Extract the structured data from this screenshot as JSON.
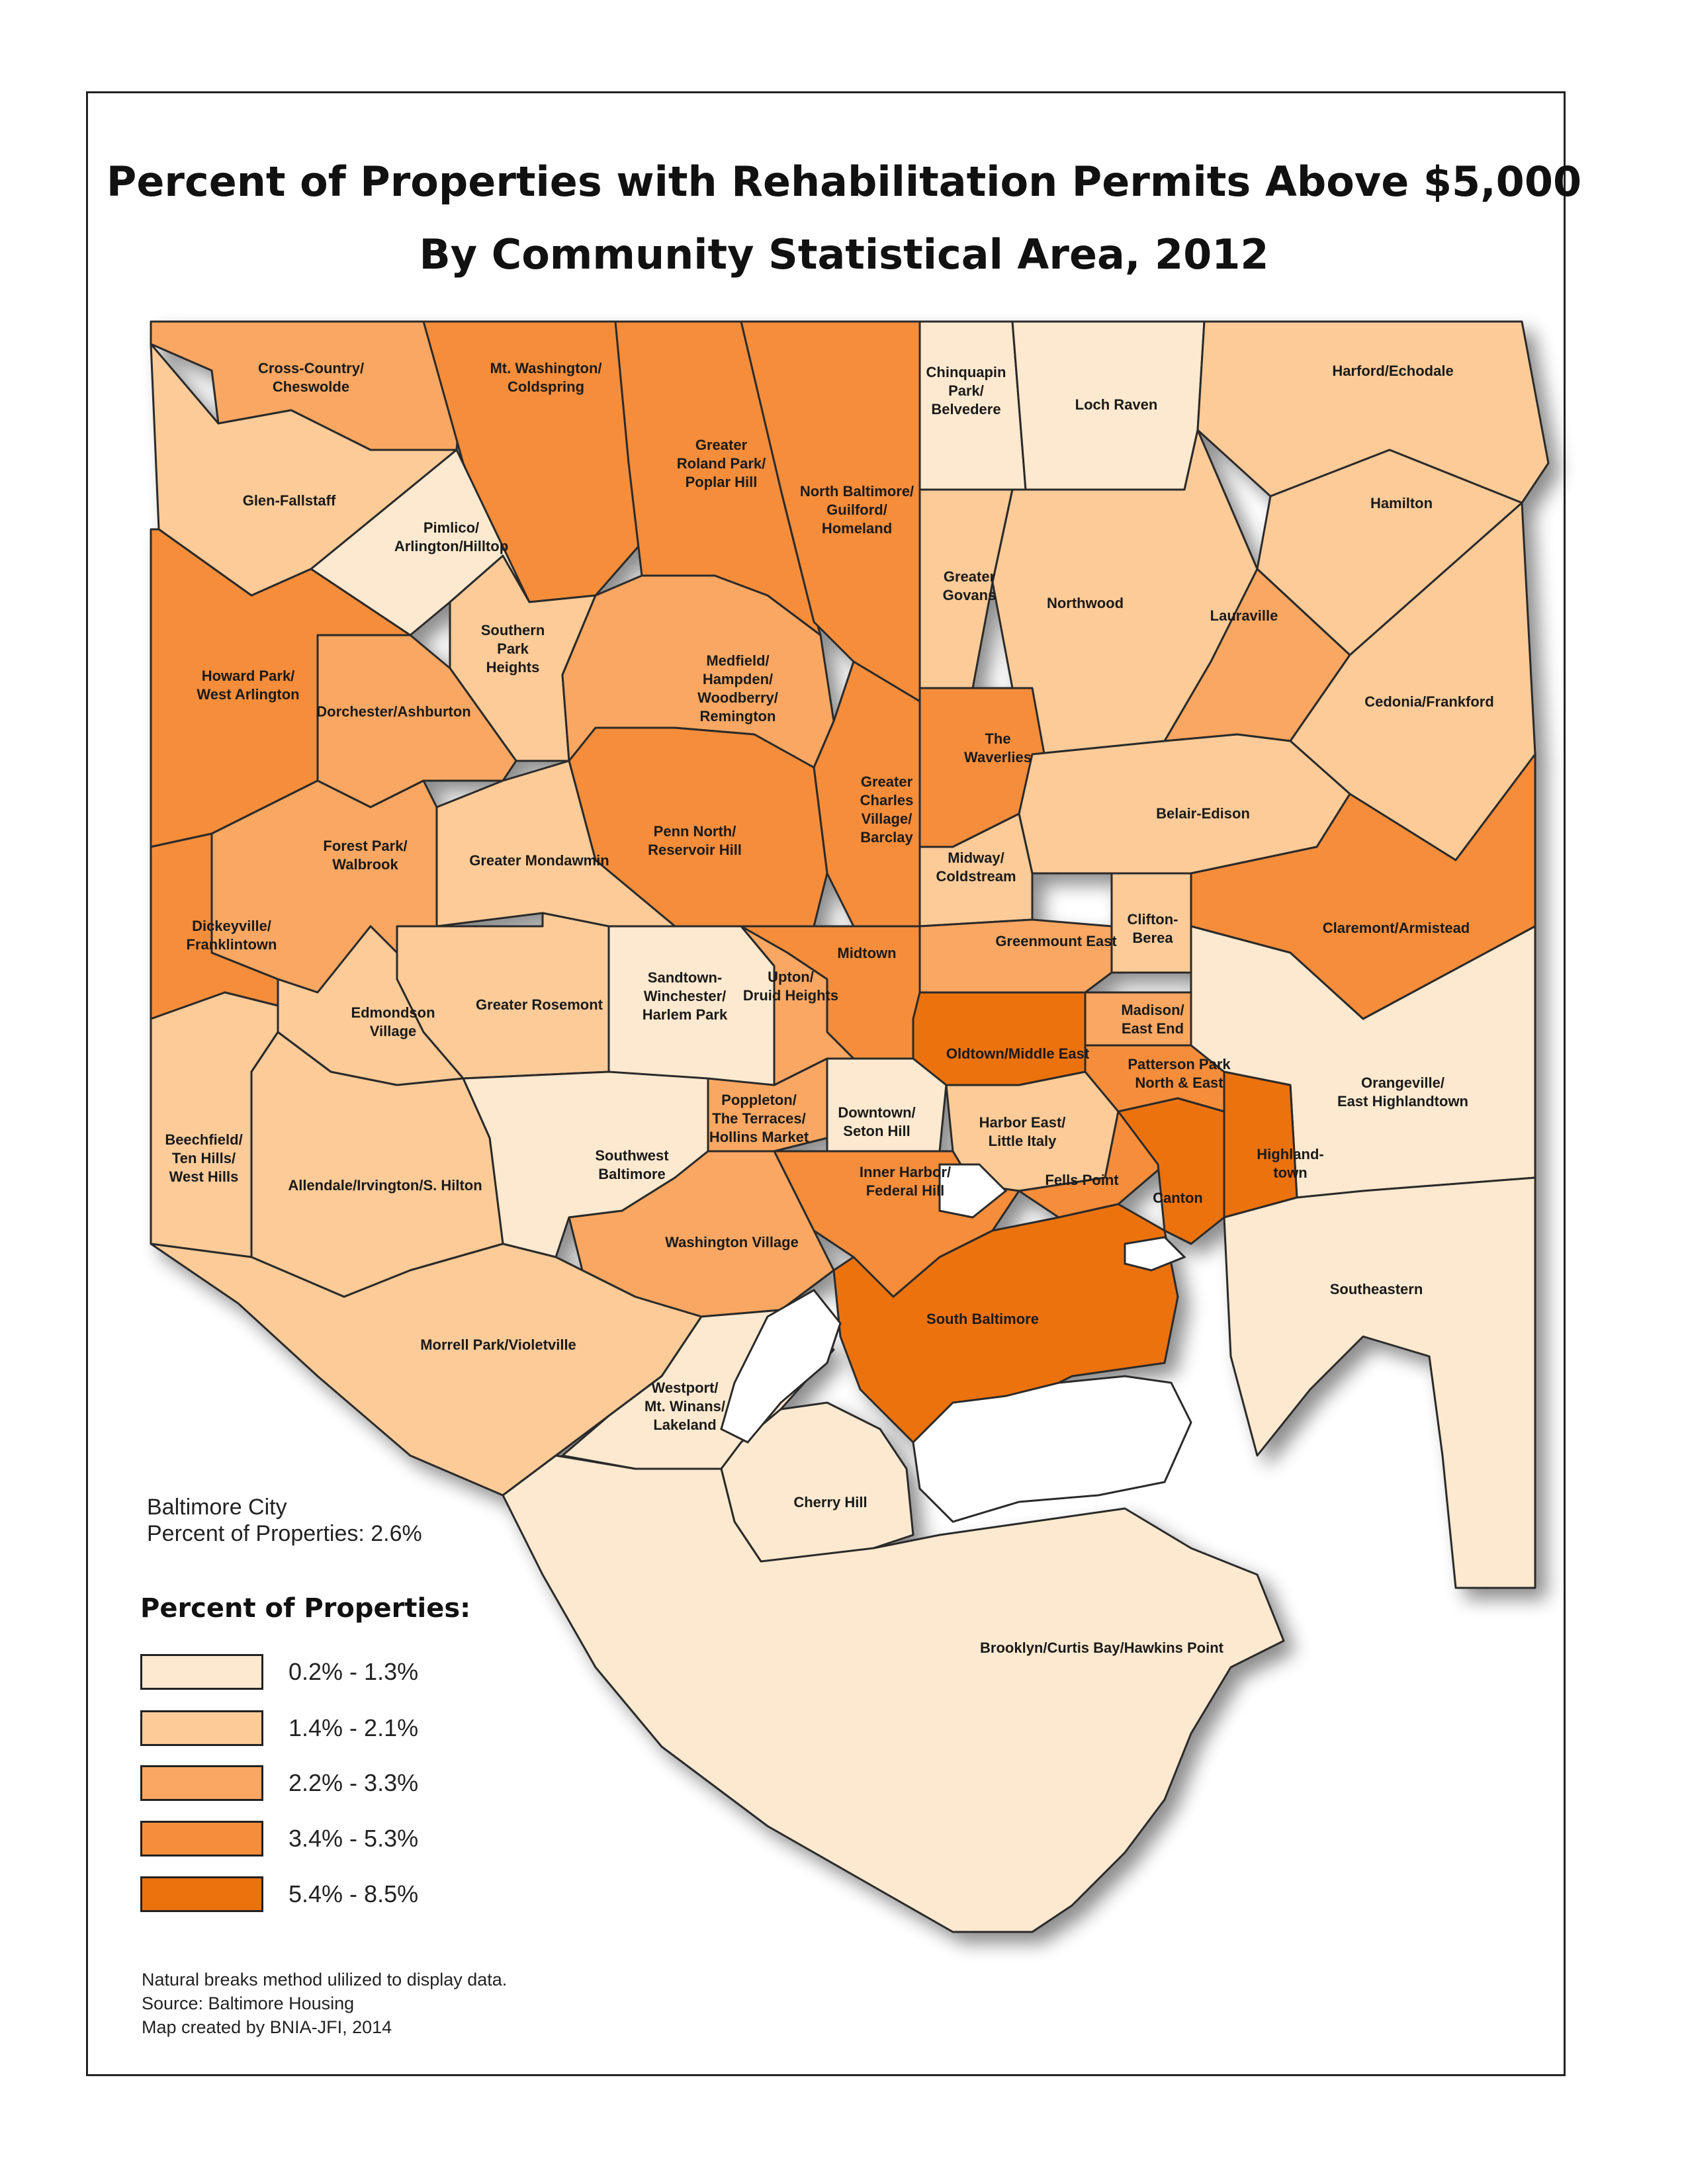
{
  "title": {
    "line1": "Percent of Properties with Rehabilitation Permits Above $5,000",
    "line2": "By Community Statistical Area, 2012"
  },
  "city_summary": {
    "line1": "Baltimore City",
    "line2": "Percent of Properties: 2.6%"
  },
  "legend": {
    "title": "Percent of Properties:",
    "classes": [
      {
        "label": "0.2% - 1.3%",
        "color": "#fde9cf"
      },
      {
        "label": "1.4% - 2.1%",
        "color": "#fccb98"
      },
      {
        "label": "2.2% - 3.3%",
        "color": "#f9a762"
      },
      {
        "label": "3.4% - 5.3%",
        "color": "#f58d3b"
      },
      {
        "label": "5.4% - 8.5%",
        "color": "#ec720d"
      }
    ]
  },
  "notes": {
    "method": "Natural breaks method ulilized to display data.",
    "source": "Source: Baltimore Housing",
    "credit": "Map created by BNIA-JFI, 2014"
  },
  "areas": [
    {
      "name": "Cross-Country/ Cheswolde",
      "lines": [
        "Cross-Country/",
        "Cheswolde"
      ],
      "class": 2
    },
    {
      "name": "Mt. Washington/ Coldspring",
      "lines": [
        "Mt. Washington/",
        "Coldspring"
      ],
      "class": 3
    },
    {
      "name": "Greater Roland Park/ Poplar Hill",
      "lines": [
        "Greater",
        "Roland Park/",
        "Poplar Hill"
      ],
      "class": 3
    },
    {
      "name": "North Baltimore/ Guilford/ Homeland",
      "lines": [
        "North Baltimore/",
        "Guilford/",
        "Homeland"
      ],
      "class": 3
    },
    {
      "name": "Chinquapin Park/ Belvedere",
      "lines": [
        "Chinquapin",
        "Park/",
        "Belvedere"
      ],
      "class": 0
    },
    {
      "name": "Loch Raven",
      "lines": [
        "Loch Raven"
      ],
      "class": 0
    },
    {
      "name": "Harford/Echodale",
      "lines": [
        "Harford/Echodale"
      ],
      "class": 1
    },
    {
      "name": "Glen-Fallstaff",
      "lines": [
        "Glen-Fallstaff"
      ],
      "class": 1
    },
    {
      "name": "Pimlico/ Arlington/Hilltop",
      "lines": [
        "Pimlico/",
        "Arlington/Hilltop"
      ],
      "class": 0
    },
    {
      "name": "Hamilton",
      "lines": [
        "Hamilton"
      ],
      "class": 1
    },
    {
      "name": "Greater Govans",
      "lines": [
        "Greater",
        "Govans"
      ],
      "class": 1
    },
    {
      "name": "Northwood",
      "lines": [
        "Northwood"
      ],
      "class": 1
    },
    {
      "name": "Lauraville",
      "lines": [
        "Lauraville"
      ],
      "class": 2
    },
    {
      "name": "Southern Park Heights",
      "lines": [
        "Southern",
        "Park",
        "Heights"
      ],
      "class": 1
    },
    {
      "name": "Howard Park/ West Arlington",
      "lines": [
        "Howard Park/",
        "West Arlington"
      ],
      "class": 3
    },
    {
      "name": "Medfield/ Hampden/ Woodberry/ Remington",
      "lines": [
        "Medfield/",
        "Hampden/",
        "Woodberry/",
        "Remington"
      ],
      "class": 2
    },
    {
      "name": "Dorchester/Ashburton",
      "lines": [
        "Dorchester/Ashburton"
      ],
      "class": 2
    },
    {
      "name": "The Waverlies",
      "lines": [
        "The",
        "Waverlies"
      ],
      "class": 3
    },
    {
      "name": "Cedonia/Frankford",
      "lines": [
        "Cedonia/Frankford"
      ],
      "class": 1
    },
    {
      "name": "Greater Charles Village/ Barclay",
      "lines": [
        "Greater",
        "Charles",
        "Village/",
        "Barclay"
      ],
      "class": 3
    },
    {
      "name": "Belair-Edison",
      "lines": [
        "Belair-Edison"
      ],
      "class": 1
    },
    {
      "name": "Forest Park/ Walbrook",
      "lines": [
        "Forest Park/",
        "Walbrook"
      ],
      "class": 2
    },
    {
      "name": "Penn North/ Reservoir Hill",
      "lines": [
        "Penn North/",
        "Reservoir Hill"
      ],
      "class": 3
    },
    {
      "name": "Greater Mondawmin",
      "lines": [
        "Greater Mondawmin"
      ],
      "class": 1
    },
    {
      "name": "Midway/ Coldstream",
      "lines": [
        "Midway/",
        "Coldstream"
      ],
      "class": 1
    },
    {
      "name": "Clifton-Berea",
      "lines": [
        "Clifton-",
        "Berea"
      ],
      "class": 1
    },
    {
      "name": "Claremont/Armistead",
      "lines": [
        "Claremont/Armistead"
      ],
      "class": 3
    },
    {
      "name": "Dickeyville/ Franklintown",
      "lines": [
        "Dickeyville/",
        "Franklintown"
      ],
      "class": 3
    },
    {
      "name": "Greenmount East",
      "lines": [
        "Greenmount East"
      ],
      "class": 2
    },
    {
      "name": "Midtown",
      "lines": [
        "Midtown"
      ],
      "class": 3
    },
    {
      "name": "Sandtown-Winchester/ Harlem Park",
      "lines": [
        "Sandtown-",
        "Winchester/",
        "Harlem Park"
      ],
      "class": 0
    },
    {
      "name": "Upton/ Druid Heights",
      "lines": [
        "Upton/",
        "Druid Heights"
      ],
      "class": 2
    },
    {
      "name": "Greater Rosemont",
      "lines": [
        "Greater Rosemont"
      ],
      "class": 1
    },
    {
      "name": "Madison/ East End",
      "lines": [
        "Madison/",
        "East End"
      ],
      "class": 2
    },
    {
      "name": "Edmondson Village",
      "lines": [
        "Edmondson",
        "Village"
      ],
      "class": 1
    },
    {
      "name": "Oldtown/Middle East",
      "lines": [
        "Oldtown/Middle East"
      ],
      "class": 4
    },
    {
      "name": "Patterson Park North & East",
      "lines": [
        "Patterson Park",
        "North & East"
      ],
      "class": 3
    },
    {
      "name": "Orangeville/ East Highlandtown",
      "lines": [
        "Orangeville/",
        "East Highlandtown"
      ],
      "class": 0
    },
    {
      "name": "Poppleton/ The Terraces/ Hollins Market",
      "lines": [
        "Poppleton/",
        "The Terraces/",
        "Hollins Market"
      ],
      "class": 2
    },
    {
      "name": "Downtown/ Seton Hill",
      "lines": [
        "Downtown/",
        "Seton Hill"
      ],
      "class": 0
    },
    {
      "name": "Harbor East/ Little Italy",
      "lines": [
        "Harbor East/",
        "Little Italy"
      ],
      "class": 1
    },
    {
      "name": "Beechfield/ Ten Hills/ West Hills",
      "lines": [
        "Beechfield/",
        "Ten Hills/",
        "West Hills"
      ],
      "class": 1
    },
    {
      "name": "Southwest Baltimore",
      "lines": [
        "Southwest",
        "Baltimore"
      ],
      "class": 0
    },
    {
      "name": "Highlandtown",
      "lines": [
        "Highland-",
        "town"
      ],
      "class": 4
    },
    {
      "name": "Allendale/Irvington/S. Hilton",
      "lines": [
        "Allendale/Irvington/S. Hilton"
      ],
      "class": 1
    },
    {
      "name": "Fells Point",
      "lines": [
        "Fells Point"
      ],
      "class": 3
    },
    {
      "name": "Canton",
      "lines": [
        "Canton"
      ],
      "class": 4
    },
    {
      "name": "Inner Harbor/ Federal Hill",
      "lines": [
        "Inner Harbor/",
        "Federal Hill"
      ],
      "class": 3
    },
    {
      "name": "Washington Village",
      "lines": [
        "Washington Village"
      ],
      "class": 2
    },
    {
      "name": "Southeastern",
      "lines": [
        "Southeastern"
      ],
      "class": 0
    },
    {
      "name": "South Baltimore",
      "lines": [
        "South Baltimore"
      ],
      "class": 4
    },
    {
      "name": "Morrell Park/Violetville",
      "lines": [
        "Morrell Park/Violetville"
      ],
      "class": 1
    },
    {
      "name": "Westport/ Mt. Winans/ Lakeland",
      "lines": [
        "Westport/",
        "Mt. Winans/",
        "Lakeland"
      ],
      "class": 0
    },
    {
      "name": "Cherry Hill",
      "lines": [
        "Cherry Hill"
      ],
      "class": 0
    },
    {
      "name": "Brooklyn/Curtis Bay/Hawkins Point",
      "lines": [
        "Brooklyn/Curtis Bay/Hawkins Point"
      ],
      "class": 0
    }
  ]
}
